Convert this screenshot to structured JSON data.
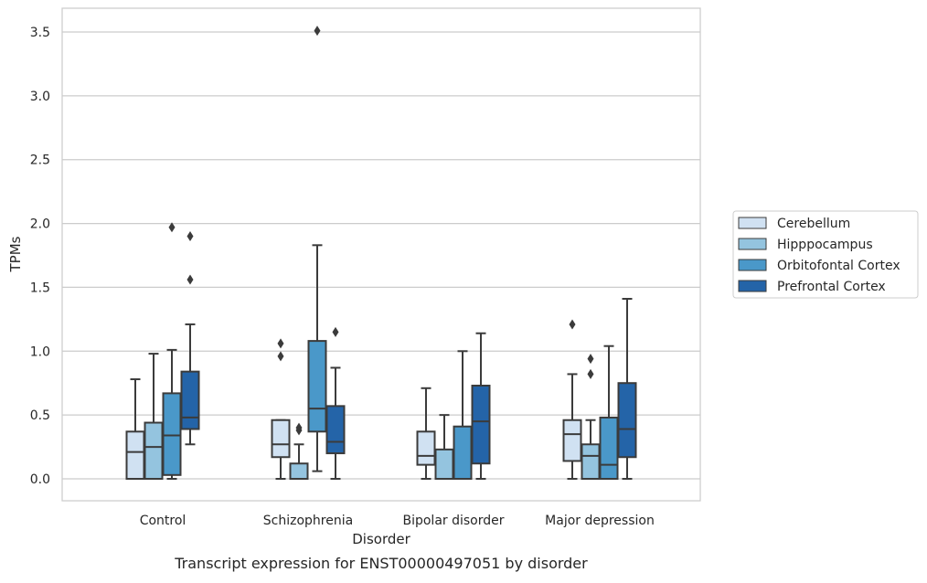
{
  "chart_data": {
    "type": "box",
    "title": "",
    "caption": "Transcript expression for ENST00000497051 by disorder",
    "xlabel": "Disorder",
    "ylabel": "TPMs",
    "ylim": [
      -0.17,
      3.68
    ],
    "yticks": [
      "0.0",
      "0.5",
      "1.0",
      "1.5",
      "2.0",
      "2.5",
      "3.0",
      "3.5"
    ],
    "ytick_values": [
      0,
      0.5,
      1.0,
      1.5,
      2.0,
      2.5,
      3.0,
      3.5
    ],
    "grid": "horizontal",
    "legend_placement": "right",
    "categories": [
      "Control",
      "Schizophrenia",
      "Bipolar disorder",
      "Major depression"
    ],
    "series": [
      {
        "name": "Cerebellum",
        "color": "#d0e1f2",
        "boxes": [
          {
            "whislo": 0.0,
            "q1": 0.0,
            "med": 0.21,
            "q3": 0.37,
            "whishi": 0.78,
            "fliers": []
          },
          {
            "whislo": 0.0,
            "q1": 0.17,
            "med": 0.27,
            "q3": 0.46,
            "whishi": 0.46,
            "fliers": [
              0.96,
              1.06
            ]
          },
          {
            "whislo": 0.0,
            "q1": 0.11,
            "med": 0.18,
            "q3": 0.37,
            "whishi": 0.71,
            "fliers": []
          },
          {
            "whislo": 0.0,
            "q1": 0.14,
            "med": 0.35,
            "q3": 0.46,
            "whishi": 0.82,
            "fliers": [
              1.21
            ]
          }
        ]
      },
      {
        "name": "Hipppocampus",
        "color": "#94c4df",
        "boxes": [
          {
            "whislo": 0.0,
            "q1": 0.0,
            "med": 0.25,
            "q3": 0.44,
            "whishi": 0.98,
            "fliers": []
          },
          {
            "whislo": 0.0,
            "q1": 0.0,
            "med": 0.0,
            "q3": 0.12,
            "whishi": 0.27,
            "fliers": [
              0.38,
              0.4
            ]
          },
          {
            "whislo": 0.0,
            "q1": 0.0,
            "med": 0.0,
            "q3": 0.23,
            "whishi": 0.5,
            "fliers": []
          },
          {
            "whislo": 0.0,
            "q1": 0.0,
            "med": 0.18,
            "q3": 0.27,
            "whishi": 0.46,
            "fliers": [
              0.82,
              0.94
            ]
          }
        ]
      },
      {
        "name": "Orbitofontal Cortex",
        "color": "#4a98c9",
        "boxes": [
          {
            "whislo": 0.0,
            "q1": 0.03,
            "med": 0.34,
            "q3": 0.67,
            "whishi": 1.01,
            "fliers": [
              1.97
            ]
          },
          {
            "whislo": 0.06,
            "q1": 0.37,
            "med": 0.55,
            "q3": 1.08,
            "whishi": 1.83,
            "fliers": [
              3.51
            ]
          },
          {
            "whislo": 0.0,
            "q1": 0.0,
            "med": 0.0,
            "q3": 0.41,
            "whishi": 1.0,
            "fliers": []
          },
          {
            "whislo": 0.0,
            "q1": 0.0,
            "med": 0.11,
            "q3": 0.48,
            "whishi": 1.04,
            "fliers": []
          }
        ]
      },
      {
        "name": "Prefrontal Cortex",
        "color": "#2464a8",
        "boxes": [
          {
            "whislo": 0.27,
            "q1": 0.39,
            "med": 0.48,
            "q3": 0.84,
            "whishi": 1.21,
            "fliers": [
              1.56,
              1.9
            ]
          },
          {
            "whislo": 0.0,
            "q1": 0.2,
            "med": 0.29,
            "q3": 0.57,
            "whishi": 0.87,
            "fliers": [
              1.15
            ]
          },
          {
            "whislo": 0.0,
            "q1": 0.12,
            "med": 0.45,
            "q3": 0.73,
            "whishi": 1.14,
            "fliers": []
          },
          {
            "whislo": 0.0,
            "q1": 0.17,
            "med": 0.39,
            "q3": 0.75,
            "whishi": 1.41,
            "fliers": []
          }
        ]
      }
    ]
  }
}
